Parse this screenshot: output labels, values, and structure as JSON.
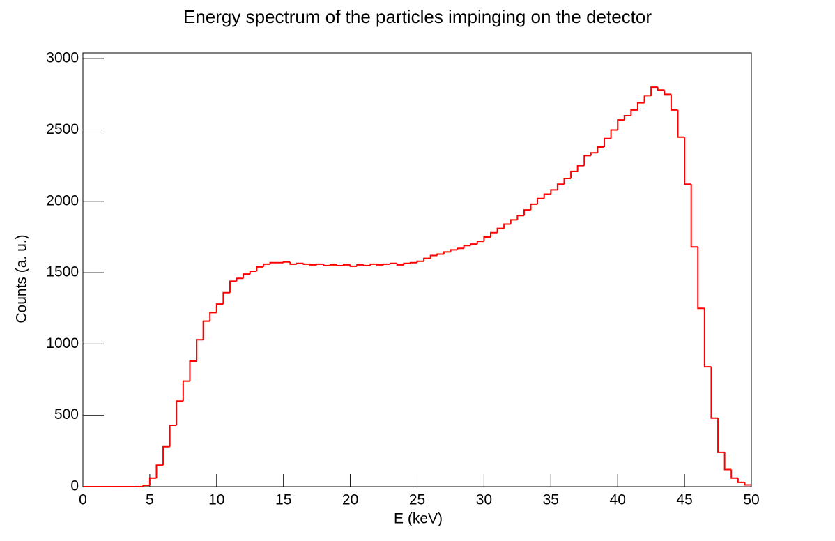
{
  "chart_data": {
    "type": "histogram",
    "title": "Energy spectrum of the particles impinging on the detector",
    "x_label": "E (keV)",
    "y_label": "Counts (a. u.)",
    "color": "#ff0000",
    "bins": [
      0,
      0.5,
      1,
      1.5,
      2,
      2.5,
      3,
      3.5,
      4,
      4.5,
      5,
      5.5,
      6,
      6.5,
      7,
      7.5,
      8,
      8.5,
      9,
      9.5,
      10,
      10.5,
      11,
      11.5,
      12,
      12.5,
      13,
      13.5,
      14,
      14.5,
      15,
      15.5,
      16,
      16.5,
      17,
      17.5,
      18,
      18.5,
      19,
      19.5,
      20,
      20.5,
      21,
      21.5,
      22,
      22.5,
      23,
      23.5,
      24,
      24.5,
      25,
      25.5,
      26,
      26.5,
      27,
      27.5,
      28,
      28.5,
      29,
      29.5,
      30,
      30.5,
      31,
      31.5,
      32,
      32.5,
      33,
      33.5,
      34,
      34.5,
      35,
      35.5,
      36,
      36.5,
      37,
      37.5,
      38,
      38.5,
      39,
      39.5,
      40,
      40.5,
      41,
      41.5,
      42,
      42.5,
      43,
      43.5,
      44,
      44.5,
      45,
      45.5,
      46,
      46.5,
      47,
      47.5,
      48,
      48.5,
      49,
      49.5,
      50
    ],
    "values": [
      0,
      0,
      0,
      0,
      0,
      0,
      0,
      0,
      0,
      10,
      60,
      150,
      280,
      430,
      600,
      740,
      880,
      1030,
      1160,
      1220,
      1280,
      1360,
      1440,
      1460,
      1490,
      1510,
      1540,
      1560,
      1570,
      1570,
      1575,
      1560,
      1565,
      1560,
      1555,
      1560,
      1550,
      1555,
      1550,
      1555,
      1545,
      1555,
      1550,
      1560,
      1555,
      1560,
      1565,
      1555,
      1565,
      1570,
      1580,
      1600,
      1620,
      1630,
      1645,
      1660,
      1670,
      1690,
      1700,
      1720,
      1750,
      1780,
      1810,
      1840,
      1870,
      1900,
      1940,
      1980,
      2020,
      2050,
      2080,
      2120,
      2160,
      2210,
      2250,
      2320,
      2340,
      2380,
      2440,
      2500,
      2570,
      2600,
      2640,
      2690,
      2740,
      2800,
      2780,
      2750,
      2640,
      2450,
      2120,
      1680,
      1250,
      840,
      480,
      240,
      120,
      60,
      30,
      12
    ],
    "xlim": [
      0,
      50
    ],
    "xticks": [
      0,
      5,
      10,
      15,
      20,
      25,
      30,
      35,
      40,
      45,
      50
    ],
    "ylim": [
      0,
      3040
    ],
    "yticks": [
      0,
      500,
      1000,
      1500,
      2000,
      2500,
      3000
    ],
    "grid": false
  }
}
